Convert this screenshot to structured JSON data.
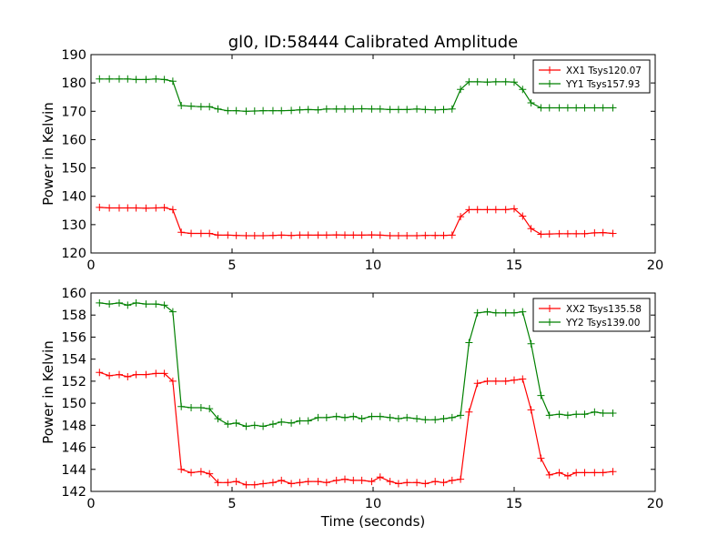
{
  "chart_data": {
    "title": "gl0, ID:58444 Calibrated Amplitude",
    "xlabel": "Time (seconds)",
    "panels": [
      {
        "type": "line",
        "ylabel": "Power in Kelvin",
        "xlim": [
          0,
          20
        ],
        "ylim": [
          120,
          190
        ],
        "xticks": [
          0,
          5,
          10,
          15,
          20
        ],
        "yticks": [
          120,
          130,
          140,
          150,
          160,
          170,
          180,
          190
        ],
        "legend_position": "top-right",
        "x": [
          0.3,
          0.65,
          1.0,
          1.3,
          1.6,
          1.95,
          2.3,
          2.6,
          2.9,
          3.2,
          3.55,
          3.9,
          4.2,
          4.5,
          4.85,
          5.15,
          5.5,
          5.8,
          6.1,
          6.45,
          6.75,
          7.1,
          7.4,
          7.7,
          8.05,
          8.35,
          8.7,
          9.0,
          9.3,
          9.6,
          9.95,
          10.25,
          10.6,
          10.9,
          11.2,
          11.55,
          11.85,
          12.2,
          12.5,
          12.8,
          13.1,
          13.4,
          13.7,
          14.05,
          14.35,
          14.7,
          15.0,
          15.3,
          15.6,
          15.95,
          16.25,
          16.6,
          16.9,
          17.2,
          17.5,
          17.85,
          18.15,
          18.5
        ],
        "series": [
          {
            "name": "XX1 Tsys120.07",
            "color": "#ff0000",
            "values": [
              136.1,
              135.9,
              135.9,
              135.9,
              135.9,
              135.8,
              135.9,
              136.0,
              135.3,
              127.3,
              126.9,
              126.9,
              126.9,
              126.3,
              126.3,
              126.2,
              126.1,
              126.1,
              126.1,
              126.2,
              126.3,
              126.2,
              126.3,
              126.3,
              126.3,
              126.3,
              126.4,
              126.3,
              126.3,
              126.3,
              126.4,
              126.3,
              126.1,
              126.1,
              126.1,
              126.1,
              126.2,
              126.2,
              126.2,
              126.3,
              132.8,
              135.3,
              135.3,
              135.3,
              135.3,
              135.3,
              135.6,
              133.0,
              128.6,
              126.6,
              126.7,
              126.8,
              126.8,
              126.8,
              126.8,
              127.1,
              127.2,
              126.9
            ]
          },
          {
            "name": "YY1 Tsys157.93",
            "color": "#008000",
            "values": [
              181.4,
              181.4,
              181.4,
              181.4,
              181.2,
              181.2,
              181.4,
              181.2,
              180.6,
              172.0,
              171.8,
              171.6,
              171.6,
              170.8,
              170.2,
              170.2,
              170.0,
              170.1,
              170.2,
              170.2,
              170.2,
              170.3,
              170.5,
              170.6,
              170.5,
              170.8,
              170.8,
              170.8,
              170.8,
              170.9,
              170.8,
              170.8,
              170.6,
              170.6,
              170.6,
              170.8,
              170.6,
              170.5,
              170.6,
              170.8,
              177.7,
              180.4,
              180.4,
              180.3,
              180.4,
              180.4,
              180.3,
              177.7,
              173.0,
              171.2,
              171.2,
              171.2,
              171.2,
              171.2,
              171.2,
              171.2,
              171.2,
              171.2
            ]
          }
        ]
      },
      {
        "type": "line",
        "ylabel": "Power in Kelvin",
        "xlim": [
          0,
          20
        ],
        "ylim": [
          142,
          160
        ],
        "xticks": [
          0,
          5,
          10,
          15,
          20
        ],
        "yticks": [
          142,
          144,
          146,
          148,
          150,
          152,
          154,
          156,
          158,
          160
        ],
        "legend_position": "top-right",
        "x": [
          0.3,
          0.65,
          1.0,
          1.3,
          1.6,
          1.95,
          2.3,
          2.6,
          2.9,
          3.2,
          3.55,
          3.9,
          4.2,
          4.5,
          4.85,
          5.15,
          5.5,
          5.8,
          6.1,
          6.45,
          6.75,
          7.1,
          7.4,
          7.7,
          8.05,
          8.35,
          8.7,
          9.0,
          9.3,
          9.6,
          9.95,
          10.25,
          10.6,
          10.9,
          11.2,
          11.55,
          11.85,
          12.2,
          12.5,
          12.8,
          13.1,
          13.4,
          13.7,
          14.05,
          14.35,
          14.7,
          15.0,
          15.3,
          15.6,
          15.95,
          16.25,
          16.6,
          16.9,
          17.2,
          17.5,
          17.85,
          18.15,
          18.5
        ],
        "series": [
          {
            "name": "XX2 Tsys135.58",
            "color": "#ff0000",
            "values": [
              152.8,
              152.5,
              152.6,
              152.4,
              152.6,
              152.6,
              152.7,
              152.7,
              152.0,
              144.0,
              143.7,
              143.8,
              143.6,
              142.8,
              142.8,
              142.9,
              142.6,
              142.6,
              142.7,
              142.8,
              143.0,
              142.7,
              142.8,
              142.9,
              142.9,
              142.8,
              143.0,
              143.1,
              143.0,
              143.0,
              142.9,
              143.3,
              142.9,
              142.7,
              142.8,
              142.8,
              142.7,
              142.9,
              142.8,
              143.0,
              143.1,
              149.2,
              151.8,
              152.0,
              152.0,
              152.0,
              152.1,
              152.2,
              149.4,
              145.0,
              143.5,
              143.7,
              143.4,
              143.7,
              143.7,
              143.7,
              143.7,
              143.8
            ]
          },
          {
            "name": "YY2 Tsys139.00",
            "color": "#008000",
            "values": [
              159.1,
              159.0,
              159.1,
              158.9,
              159.1,
              159.0,
              159.0,
              158.9,
              158.3,
              149.7,
              149.6,
              149.6,
              149.5,
              148.6,
              148.1,
              148.2,
              147.9,
              148.0,
              147.9,
              148.1,
              148.3,
              148.2,
              148.4,
              148.4,
              148.7,
              148.7,
              148.8,
              148.7,
              148.8,
              148.6,
              148.8,
              148.8,
              148.7,
              148.6,
              148.7,
              148.6,
              148.5,
              148.5,
              148.6,
              148.7,
              148.9,
              155.5,
              158.2,
              158.3,
              158.2,
              158.2,
              158.2,
              158.3,
              155.4,
              150.7,
              148.9,
              149.0,
              148.9,
              149.0,
              149.0,
              149.2,
              149.1,
              149.1
            ]
          }
        ]
      }
    ]
  }
}
